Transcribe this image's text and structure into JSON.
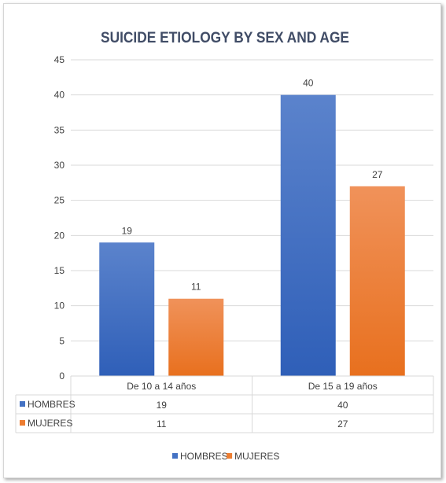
{
  "chart_data": {
    "type": "bar",
    "title": "SUICIDE ETIOLOGY BY SEX AND AGE",
    "categories": [
      "De 10 a 14 años",
      "De 15 a 19 años"
    ],
    "series": [
      {
        "name": "HOMBRES",
        "values": [
          19,
          40
        ],
        "color": "#4472c4"
      },
      {
        "name": "MUJERES",
        "values": [
          11,
          27
        ],
        "color": "#ed7d31"
      }
    ],
    "ylim": [
      0,
      45
    ],
    "yticks": [
      0,
      5,
      10,
      15,
      20,
      25,
      30,
      35,
      40,
      45
    ],
    "grid": true,
    "legend": "bottom",
    "data_table": true
  }
}
